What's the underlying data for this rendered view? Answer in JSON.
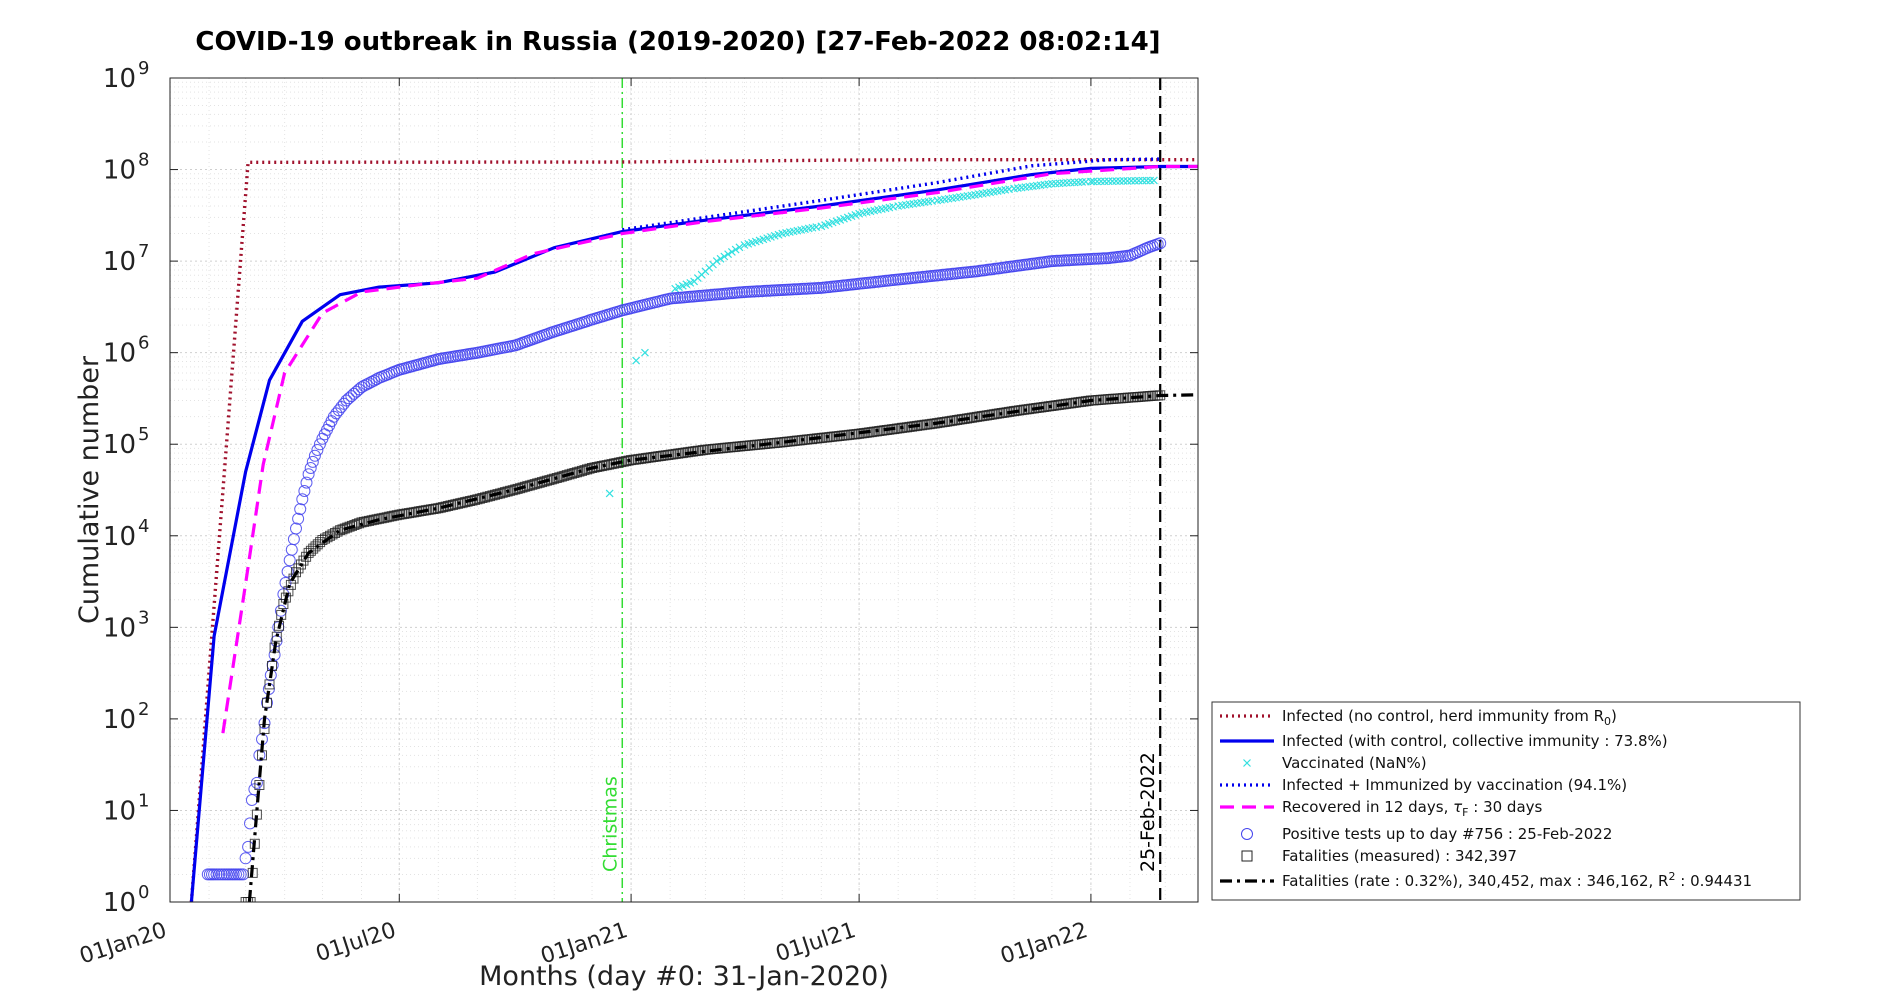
{
  "chart_data": {
    "type": "line",
    "title": "COVID-19 outbreak in Russia (2019-2020) [27-Feb-2022 08:02:14]",
    "xlabel": "Months (day #0: 31-Jan-2020)",
    "ylabel": "Cumulative number",
    "y_scale": "log",
    "ylim": [
      1,
      1000000000
    ],
    "xlim": [
      "2020-01-01",
      "2022-03-27"
    ],
    "grid": true,
    "legend_position": "bottom-right-outside",
    "x_ticks": [
      {
        "date": "2020-01-01",
        "label": "01Jan20"
      },
      {
        "date": "2020-07-01",
        "label": "01Jul20"
      },
      {
        "date": "2021-01-01",
        "label": "01Jan21"
      },
      {
        "date": "2021-07-01",
        "label": "01Jul21"
      },
      {
        "date": "2022-01-01",
        "label": "01Jan22"
      }
    ],
    "y_ticks": [
      {
        "exp": 0,
        "base": "10",
        "sup": "0"
      },
      {
        "exp": 1,
        "base": "10",
        "sup": "1"
      },
      {
        "exp": 2,
        "base": "10",
        "sup": "2"
      },
      {
        "exp": 3,
        "base": "10",
        "sup": "3"
      },
      {
        "exp": 4,
        "base": "10",
        "sup": "4"
      },
      {
        "exp": 5,
        "base": "10",
        "sup": "5"
      },
      {
        "exp": 6,
        "base": "10",
        "sup": "6"
      },
      {
        "exp": 7,
        "base": "10",
        "sup": "7"
      },
      {
        "exp": 8,
        "base": "10",
        "sup": "8"
      },
      {
        "exp": 9,
        "base": "10",
        "sup": "9"
      }
    ],
    "annotations": [
      {
        "date": "2020-12-25",
        "label": "Christmas",
        "color": "#33dd33"
      },
      {
        "date": "2022-02-25",
        "label": "25-Feb-2022",
        "color": "#000000"
      }
    ],
    "series": [
      {
        "name": "Infected (no control, herd immunity from R",
        "name_sub": "0",
        "name_tail": ")",
        "style": "dotted",
        "color": "#a0112c",
        "points": [
          [
            "2020-01-18",
            1
          ],
          [
            "2020-03-03",
            120000000
          ],
          [
            "2020-12-25",
            121000000
          ],
          [
            "2021-03-05",
            123000000
          ],
          [
            "2021-06-15",
            127000000
          ],
          [
            "2021-09-01",
            128000000
          ],
          [
            "2022-03-27",
            128000000
          ]
        ]
      },
      {
        "name": "Infected (with control, collective immunity : 73.8%)",
        "style": "solid",
        "color": "#0000ee",
        "points": [
          [
            "2020-01-18",
            1
          ],
          [
            "2020-02-05",
            800
          ],
          [
            "2020-03-01",
            50000
          ],
          [
            "2020-03-20",
            500000
          ],
          [
            "2020-04-15",
            2200000
          ],
          [
            "2020-05-15",
            4300000
          ],
          [
            "2020-06-15",
            5200000
          ],
          [
            "2020-08-01",
            5800000
          ],
          [
            "2020-09-15",
            7600000
          ],
          [
            "2020-11-01",
            14000000
          ],
          [
            "2020-12-25",
            21000000
          ],
          [
            "2021-03-01",
            28000000
          ],
          [
            "2021-06-01",
            40000000
          ],
          [
            "2021-09-01",
            60000000
          ],
          [
            "2021-11-15",
            88000000
          ],
          [
            "2022-01-01",
            103000000
          ],
          [
            "2022-02-25",
            108000000
          ],
          [
            "2022-03-27",
            108000000
          ]
        ]
      },
      {
        "name": "Vaccinated (NaN%)",
        "style": "markers-x",
        "color": "#33e0e0",
        "points": [
          [
            "2020-12-15",
            29000
          ],
          [
            "2021-01-05",
            820000
          ],
          [
            "2021-01-12",
            1000000
          ],
          [
            "2021-02-05",
            5000000
          ],
          [
            "2021-02-20",
            6000000
          ],
          [
            "2021-03-10",
            10000000
          ],
          [
            "2021-04-01",
            15000000
          ],
          [
            "2021-05-01",
            20000000
          ],
          [
            "2021-06-01",
            24000000
          ],
          [
            "2021-07-01",
            33000000
          ],
          [
            "2021-08-01",
            40000000
          ],
          [
            "2021-09-01",
            46000000
          ],
          [
            "2021-10-01",
            53000000
          ],
          [
            "2021-11-01",
            62000000
          ],
          [
            "2021-12-01",
            70000000
          ],
          [
            "2022-01-01",
            74000000
          ],
          [
            "2022-02-20",
            76000000
          ]
        ]
      },
      {
        "name": "Infected + Immunized by vaccination (94.1%)",
        "style": "dotted",
        "color": "#0000ee",
        "points": [
          [
            "2020-12-25",
            22000000
          ],
          [
            "2021-03-01",
            30000000
          ],
          [
            "2021-06-01",
            46000000
          ],
          [
            "2021-09-01",
            72000000
          ],
          [
            "2021-11-15",
            110000000
          ],
          [
            "2022-01-15",
            128000000
          ],
          [
            "2022-02-25",
            130000000
          ]
        ]
      },
      {
        "name": "Recovered in 12 days,",
        "name_tau": "τ",
        "name_sub": "F",
        "name_tail": " : 30 days",
        "style": "dashed",
        "color": "#ff00ff",
        "points": [
          [
            "2020-02-12",
            70
          ],
          [
            "2020-03-01",
            3000
          ],
          [
            "2020-03-15",
            60000
          ],
          [
            "2020-04-01",
            600000
          ],
          [
            "2020-05-01",
            2700000
          ],
          [
            "2020-06-01",
            4600000
          ],
          [
            "2020-07-15",
            5500000
          ],
          [
            "2020-09-01",
            6500000
          ],
          [
            "2020-10-15",
            12000000
          ],
          [
            "2020-12-25",
            20000000
          ],
          [
            "2021-03-01",
            27000000
          ],
          [
            "2021-06-01",
            38000000
          ],
          [
            "2021-09-01",
            56000000
          ],
          [
            "2021-12-01",
            90000000
          ],
          [
            "2022-02-25",
            108000000
          ],
          [
            "2022-03-27",
            108000000
          ]
        ]
      },
      {
        "name": "Positive tests up to day #756 : 25-Feb-2022",
        "style": "markers-circle",
        "color": "#4444ee",
        "points": [
          [
            "2020-01-31",
            2
          ],
          [
            "2020-02-05",
            2
          ],
          [
            "2020-02-15",
            2
          ],
          [
            "2020-02-28",
            2
          ],
          [
            "2020-03-01",
            3
          ],
          [
            "2020-03-03",
            4
          ],
          [
            "2020-03-06",
            13
          ],
          [
            "2020-03-08",
            17
          ],
          [
            "2020-03-10",
            20
          ],
          [
            "2020-03-12",
            40
          ],
          [
            "2020-03-14",
            60
          ],
          [
            "2020-03-16",
            90
          ],
          [
            "2020-03-18",
            150
          ],
          [
            "2020-03-21",
            300
          ],
          [
            "2020-03-24",
            500
          ],
          [
            "2020-03-27",
            1000
          ],
          [
            "2020-03-31",
            2300
          ],
          [
            "2020-04-05",
            5400
          ],
          [
            "2020-04-10",
            12000
          ],
          [
            "2020-04-15",
            25000
          ],
          [
            "2020-04-20",
            47000
          ],
          [
            "2020-04-25",
            75000
          ],
          [
            "2020-05-01",
            115000
          ],
          [
            "2020-05-10",
            200000
          ],
          [
            "2020-05-20",
            300000
          ],
          [
            "2020-06-01",
            420000
          ],
          [
            "2020-06-15",
            530000
          ],
          [
            "2020-07-01",
            650000
          ],
          [
            "2020-08-01",
            850000
          ],
          [
            "2020-09-01",
            1000000
          ],
          [
            "2020-10-01",
            1200000
          ],
          [
            "2020-11-01",
            1700000
          ],
          [
            "2020-12-01",
            2300000
          ],
          [
            "2020-12-25",
            2900000
          ],
          [
            "2021-02-01",
            3900000
          ],
          [
            "2021-04-01",
            4600000
          ],
          [
            "2021-06-01",
            5100000
          ],
          [
            "2021-08-01",
            6300000
          ],
          [
            "2021-10-01",
            7700000
          ],
          [
            "2021-12-01",
            10000000
          ],
          [
            "2022-01-15",
            10800000
          ],
          [
            "2022-02-01",
            11500000
          ],
          [
            "2022-02-15",
            14000000
          ],
          [
            "2022-02-25",
            15700000
          ]
        ]
      },
      {
        "name": "Fatalities (measured) : 342,397",
        "style": "markers-square",
        "color": "#222222",
        "points": [
          [
            "2020-03-01",
            1
          ],
          [
            "2020-03-05",
            1
          ],
          [
            "2020-03-10",
            9
          ],
          [
            "2020-03-14",
            40
          ],
          [
            "2020-03-18",
            150
          ],
          [
            "2020-03-24",
            600
          ],
          [
            "2020-03-31",
            1800
          ],
          [
            "2020-04-10",
            4000
          ],
          [
            "2020-04-20",
            6500
          ],
          [
            "2020-05-01",
            9000
          ],
          [
            "2020-05-15",
            11500
          ],
          [
            "2020-06-01",
            14000
          ],
          [
            "2020-07-01",
            17000
          ],
          [
            "2020-08-01",
            20000
          ],
          [
            "2020-09-01",
            25000
          ],
          [
            "2020-10-01",
            32000
          ],
          [
            "2020-11-01",
            42000
          ],
          [
            "2020-12-01",
            55000
          ],
          [
            "2021-01-01",
            67000
          ],
          [
            "2021-03-01",
            87000
          ],
          [
            "2021-05-01",
            105000
          ],
          [
            "2021-07-01",
            130000
          ],
          [
            "2021-09-01",
            170000
          ],
          [
            "2021-11-01",
            230000
          ],
          [
            "2022-01-01",
            300000
          ],
          [
            "2022-02-25",
            342397
          ]
        ]
      },
      {
        "name": "Fatalities (rate : 0.32%), 340,452, max : 346,162, R",
        "name_sup": "2",
        "name_tail": " : 0.94431",
        "style": "dashdot",
        "color": "#000000",
        "points": [
          [
            "2020-03-04",
            1
          ],
          [
            "2020-03-10",
            10
          ],
          [
            "2020-03-16",
            100
          ],
          [
            "2020-03-25",
            700
          ],
          [
            "2020-04-05",
            3000
          ],
          [
            "2020-04-20",
            6500
          ],
          [
            "2020-05-15",
            11500
          ],
          [
            "2020-06-15",
            15000
          ],
          [
            "2020-08-01",
            20000
          ],
          [
            "2020-10-01",
            32000
          ],
          [
            "2020-12-01",
            55000
          ],
          [
            "2021-01-01",
            67000
          ],
          [
            "2021-05-01",
            105000
          ],
          [
            "2021-09-01",
            170000
          ],
          [
            "2022-01-01",
            300000
          ],
          [
            "2022-02-25",
            340452
          ],
          [
            "2022-03-27",
            346162
          ]
        ]
      }
    ]
  }
}
